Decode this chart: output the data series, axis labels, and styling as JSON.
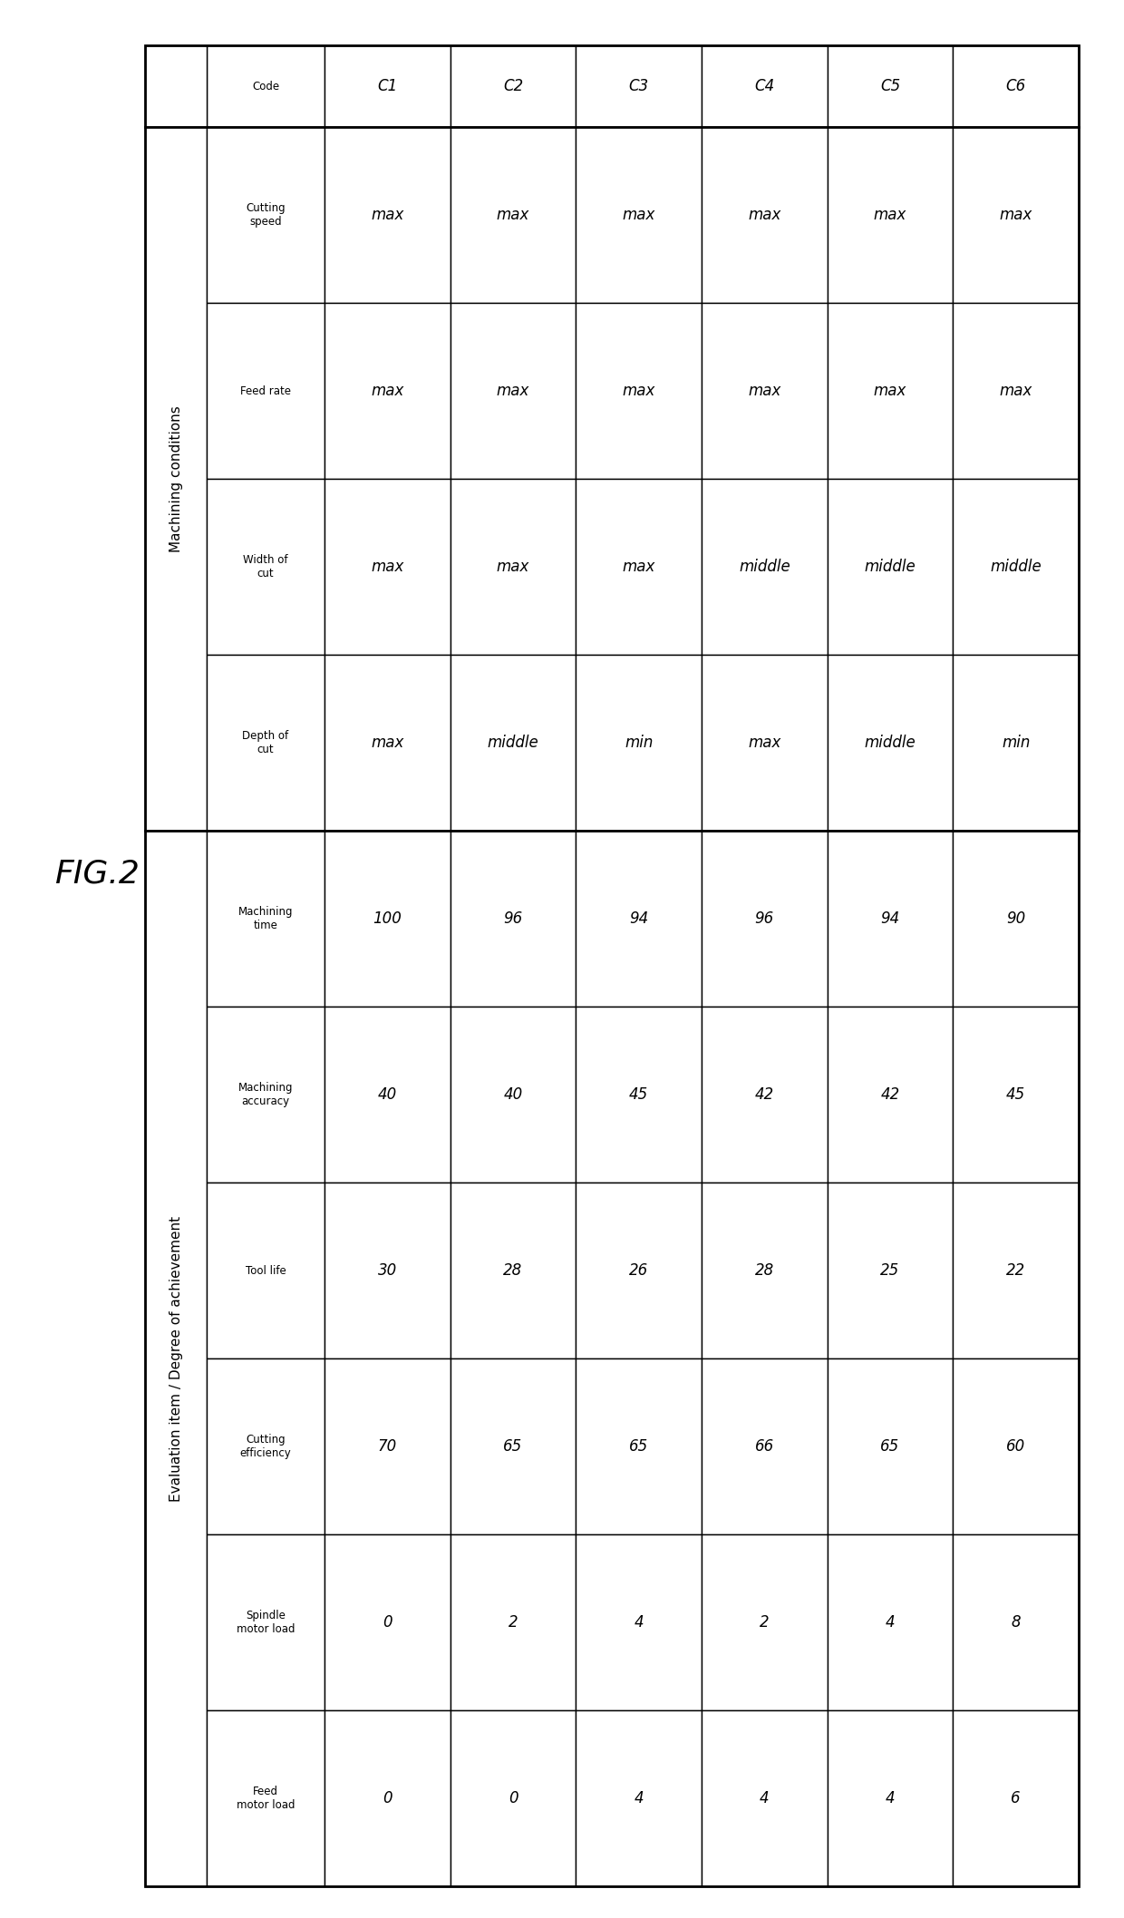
{
  "title": "FIG.2",
  "group1_label": "Machining conditions",
  "group2_label": "Evaluation item / Degree of achievement",
  "row_labels": [
    "Code",
    "Cutting\nspeed",
    "Feed rate",
    "Width of\ncut",
    "Depth of\ncut",
    "Machining\ntime",
    "Machining\naccuracy",
    "Tool life",
    "Cutting\nefficiency",
    "Spindle\nmotor load",
    "Feed\nmotor load"
  ],
  "col_labels": [
    "C1",
    "C2",
    "C3",
    "C4",
    "C5",
    "C6"
  ],
  "table_data": [
    [
      "max",
      "max",
      "max",
      "max",
      "max",
      "max"
    ],
    [
      "max",
      "max",
      "max",
      "max",
      "max",
      "max"
    ],
    [
      "max",
      "max",
      "max",
      "middle",
      "middle",
      "middle"
    ],
    [
      "max",
      "middle",
      "min",
      "max",
      "middle",
      "min"
    ],
    [
      "100",
      "96",
      "94",
      "96",
      "94",
      "90"
    ],
    [
      "40",
      "40",
      "45",
      "42",
      "42",
      "45"
    ],
    [
      "30",
      "28",
      "26",
      "28",
      "25",
      "22"
    ],
    [
      "70",
      "65",
      "65",
      "66",
      "65",
      "60"
    ],
    [
      "0",
      "2",
      "4",
      "2",
      "4",
      "8"
    ],
    [
      "0",
      "0",
      "4",
      "4",
      "4",
      "6"
    ]
  ],
  "group1_rows": [
    1,
    2,
    3,
    4
  ],
  "group2_rows": [
    5,
    6,
    7,
    8,
    9,
    10
  ],
  "bg_color": "#ffffff",
  "line_color": "#000000",
  "text_color": "#000000",
  "font_size_header": 8.5,
  "font_size_cell": 12,
  "font_size_group": 11,
  "font_size_title": 26
}
